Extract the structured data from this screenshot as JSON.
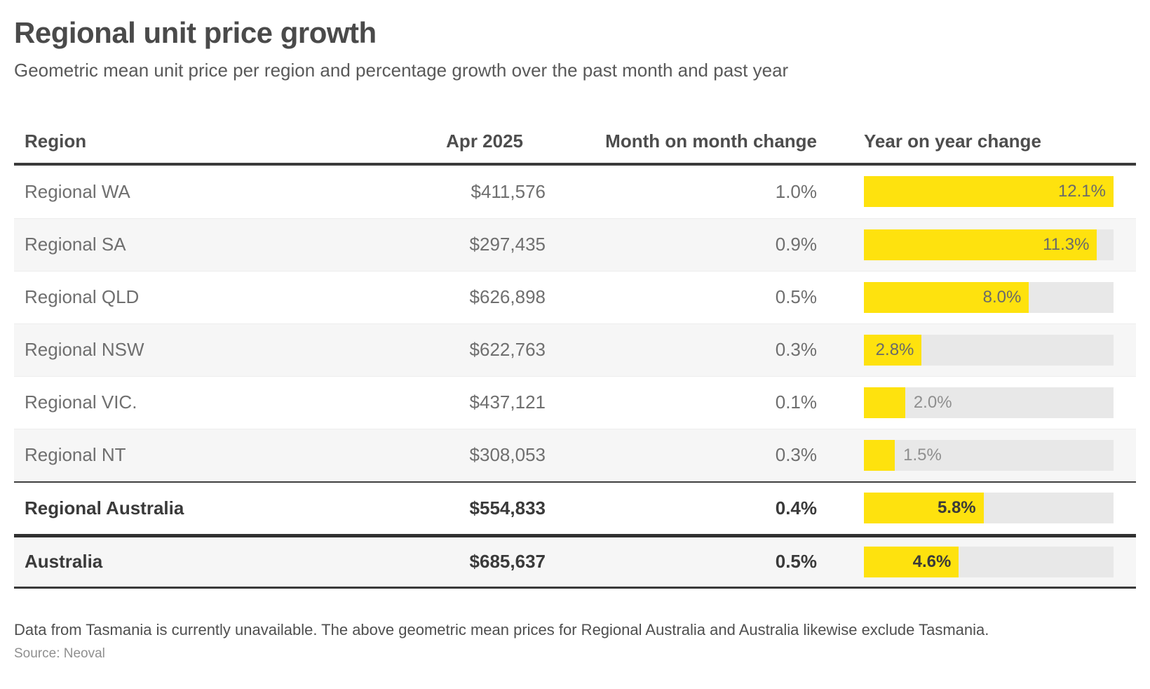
{
  "chart_data": {
    "type": "table",
    "title": "Regional unit price growth",
    "subtitle": "Geometric mean unit price per region and percentage growth over the past month and past year",
    "columns": [
      "Region",
      "Apr 2025",
      "Month on month change",
      "Year on year change"
    ],
    "bar_column": "Year on year change",
    "bar_axis_max_pct": 12.1,
    "rows": [
      {
        "region": "Regional WA",
        "price_display": "$411,576",
        "price": 411576,
        "mom_display": "1.0%",
        "mom_pct": 1.0,
        "yoy_display": "12.1%",
        "yoy_pct": 12.1,
        "is_total": false
      },
      {
        "region": "Regional SA",
        "price_display": "$297,435",
        "price": 297435,
        "mom_display": "0.9%",
        "mom_pct": 0.9,
        "yoy_display": "11.3%",
        "yoy_pct": 11.3,
        "is_total": false
      },
      {
        "region": "Regional QLD",
        "price_display": "$626,898",
        "price": 626898,
        "mom_display": "0.5%",
        "mom_pct": 0.5,
        "yoy_display": "8.0%",
        "yoy_pct": 8.0,
        "is_total": false
      },
      {
        "region": "Regional NSW",
        "price_display": "$622,763",
        "price": 622763,
        "mom_display": "0.3%",
        "mom_pct": 0.3,
        "yoy_display": "2.8%",
        "yoy_pct": 2.8,
        "is_total": false
      },
      {
        "region": "Regional VIC.",
        "price_display": "$437,121",
        "price": 437121,
        "mom_display": "0.1%",
        "mom_pct": 0.1,
        "yoy_display": "2.0%",
        "yoy_pct": 2.0,
        "is_total": false
      },
      {
        "region": "Regional NT",
        "price_display": "$308,053",
        "price": 308053,
        "mom_display": "0.3%",
        "mom_pct": 0.3,
        "yoy_display": "1.5%",
        "yoy_pct": 1.5,
        "is_total": false
      },
      {
        "region": "Regional Australia",
        "price_display": "$554,833",
        "price": 554833,
        "mom_display": "0.4%",
        "mom_pct": 0.4,
        "yoy_display": "5.8%",
        "yoy_pct": 5.8,
        "is_total": true
      },
      {
        "region": "Australia",
        "price_display": "$685,637",
        "price": 685637,
        "mom_display": "0.5%",
        "mom_pct": 0.5,
        "yoy_display": "4.6%",
        "yoy_pct": 4.6,
        "is_total": true
      }
    ]
  },
  "footer": {
    "note": "Data from Tasmania is currently unavailable. The above geometric mean prices for Regional Australia and Australia likewise exclude Tasmania.",
    "source": "Source: Neoval"
  },
  "colors": {
    "bar_yellow": "#FEE20E",
    "bar_track": "#E8E8E8",
    "row_alt": "#F6F6F6",
    "border_dark": "#3A3A3A"
  }
}
